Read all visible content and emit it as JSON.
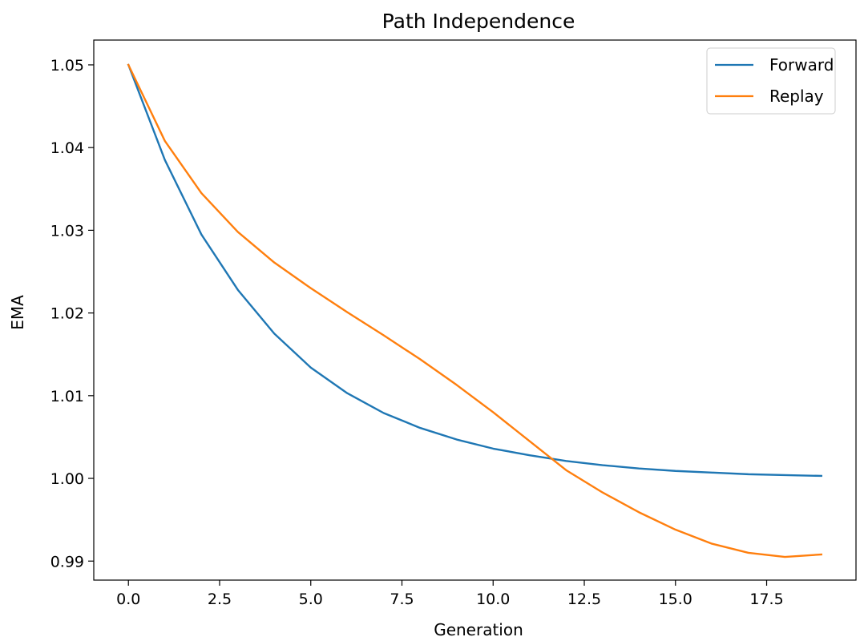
{
  "chart_data": {
    "type": "line",
    "title": "Path Independence",
    "xlabel": "Generation",
    "ylabel": "EMA",
    "xlim": [
      -0.95,
      19.95
    ],
    "ylim": [
      0.9877,
      1.053
    ],
    "x_ticks": [
      0.0,
      2.5,
      5.0,
      7.5,
      10.0,
      12.5,
      15.0,
      17.5
    ],
    "x_tick_labels": [
      "0.0",
      "2.5",
      "5.0",
      "7.5",
      "10.0",
      "12.5",
      "15.0",
      "17.5"
    ],
    "y_ticks": [
      0.99,
      1.0,
      1.01,
      1.02,
      1.03,
      1.04,
      1.05
    ],
    "y_tick_labels": [
      "0.99",
      "1.00",
      "1.01",
      "1.02",
      "1.03",
      "1.04",
      "1.05"
    ],
    "grid": false,
    "legend_position": "top-right",
    "x": [
      0,
      1,
      2,
      3,
      4,
      5,
      6,
      7,
      8,
      9,
      10,
      11,
      12,
      13,
      14,
      15,
      16,
      17,
      18,
      19
    ],
    "series": [
      {
        "name": "Forward",
        "color": "#1f77b4",
        "values": [
          1.05,
          1.0385,
          1.0295,
          1.0228,
          1.0175,
          1.0134,
          1.0103,
          1.0079,
          1.0061,
          1.0047,
          1.0036,
          1.0028,
          1.0021,
          1.0016,
          1.0012,
          1.0009,
          1.0007,
          1.0005,
          1.0004,
          1.0003
        ]
      },
      {
        "name": "Replay",
        "color": "#ff7f0e",
        "values": [
          1.05,
          1.0408,
          1.0345,
          1.0298,
          1.0261,
          1.023,
          1.0201,
          1.0173,
          1.0144,
          1.0113,
          1.008,
          1.0045,
          1.001,
          0.9983,
          0.9959,
          0.9938,
          0.9921,
          0.991,
          0.9905,
          0.9908
        ]
      }
    ]
  }
}
